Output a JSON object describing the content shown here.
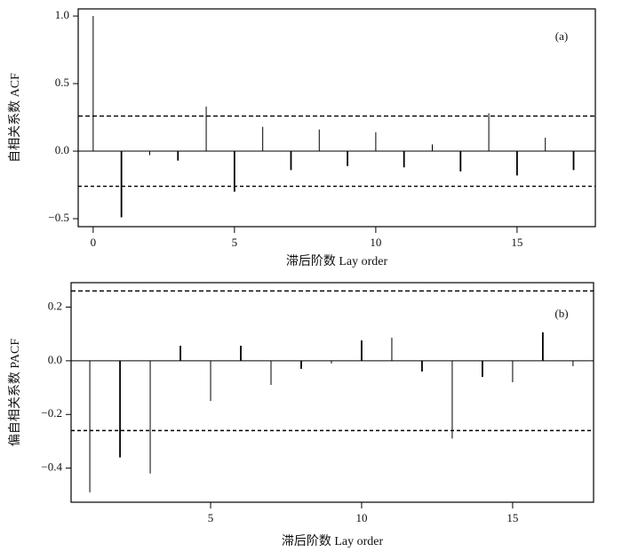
{
  "chart_data": [
    {
      "type": "stem",
      "annotation": "(a)",
      "x_label": "滞后阶数 Lay order",
      "y_label": "自相关系数 ACF",
      "x": [
        0,
        1,
        2,
        3,
        4,
        5,
        6,
        7,
        8,
        9,
        10,
        11,
        12,
        13,
        14,
        15,
        16,
        17
      ],
      "values": [
        1.0,
        -0.49,
        -0.03,
        -0.07,
        0.33,
        -0.3,
        0.18,
        -0.14,
        0.16,
        -0.11,
        0.14,
        -0.12,
        0.05,
        -0.15,
        0.28,
        -0.18,
        0.1,
        -0.14
      ],
      "color": "#000000",
      "conf_limits": [
        0.26,
        -0.26
      ],
      "xlim": [
        -0.53,
        17.77
      ],
      "ylim": [
        -0.559,
        1.053
      ],
      "xticks": [
        0,
        5,
        10,
        15
      ],
      "yticks": [
        {
          "value": 1.0,
          "label": "1.0"
        },
        0.5,
        {
          "value": 0,
          "label": "0.0"
        },
        {
          "value": -0.5,
          "label": "−0.5"
        }
      ]
    },
    {
      "type": "stem",
      "annotation": "(b)",
      "x_label": "滞后阶数 Lay order",
      "y_label": "偏自相关系数 PACF",
      "x": [
        1,
        2,
        3,
        4,
        5,
        6,
        7,
        8,
        9,
        10,
        11,
        12,
        13,
        14,
        15,
        16,
        17
      ],
      "values": [
        -0.49,
        -0.36,
        -0.42,
        0.056,
        -0.15,
        0.056,
        -0.09,
        -0.03,
        -0.01,
        0.076,
        0.086,
        -0.04,
        -0.29,
        -0.06,
        -0.08,
        0.106,
        -0.02
      ],
      "color": "#000000",
      "conf_limits": [
        0.26,
        -0.26
      ],
      "xlim": [
        0.38,
        17.68
      ],
      "ylim": [
        -0.527,
        0.291
      ],
      "xticks": [
        5,
        10,
        15
      ],
      "yticks": [
        0.2,
        {
          "value": 0,
          "label": "0.0"
        },
        {
          "value": -0.2,
          "label": "−0.2"
        },
        {
          "value": -0.4,
          "label": "−0.4"
        }
      ]
    }
  ]
}
